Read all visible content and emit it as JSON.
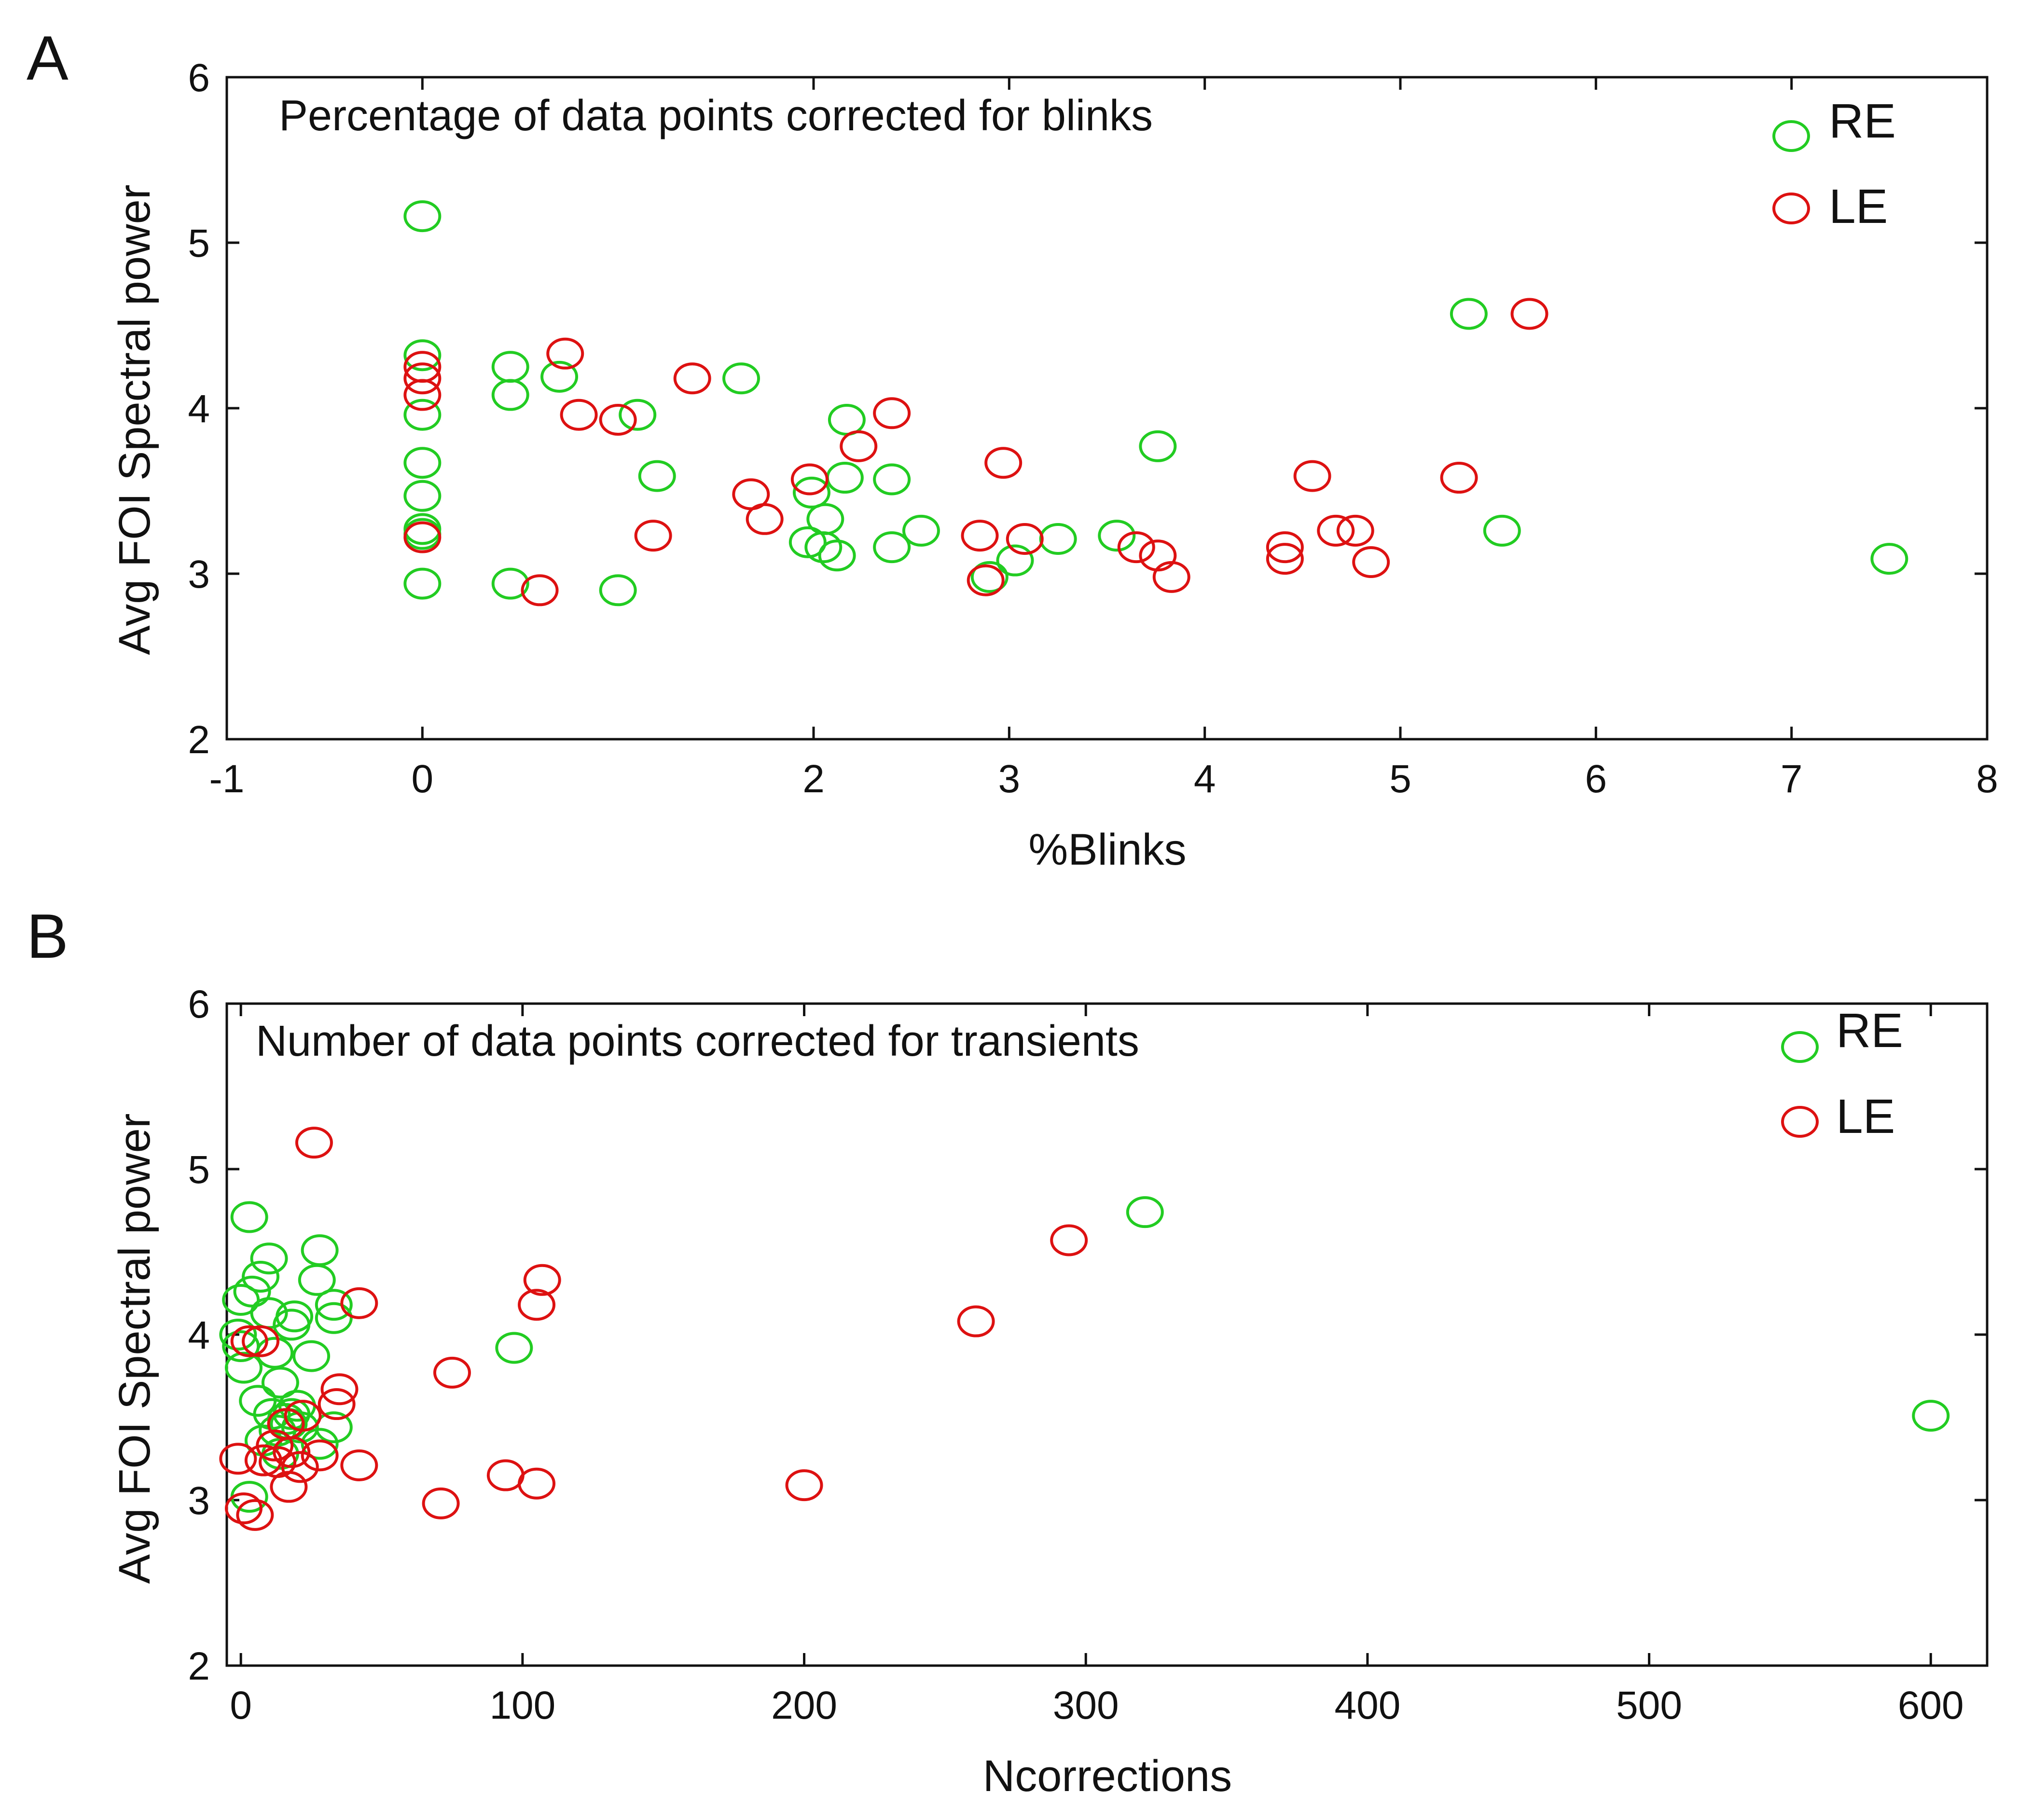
{
  "chart_data": [
    {
      "panel_label": "A",
      "type": "scatter",
      "title": "Percentage of data points corrected for blinks",
      "xlabel": "%Blinks",
      "ylabel": "Avg FOI Spectral power",
      "xlim": [
        -1,
        8
      ],
      "ylim": [
        2,
        6
      ],
      "xticks": [
        -1,
        0,
        2,
        3,
        4,
        5,
        6,
        7,
        8
      ],
      "xtick_labels": [
        "-1",
        "0",
        "2",
        "3",
        "4",
        "5",
        "6",
        "7",
        "8"
      ],
      "yticks": [
        2,
        3,
        4,
        5,
        6
      ],
      "ytick_labels": [
        "2",
        "3",
        "4",
        "5",
        "6"
      ],
      "grid": false,
      "legend_position": "top-right",
      "series": [
        {
          "name": "RE",
          "color": "#22cc22",
          "points": [
            [
              0,
              5.16
            ],
            [
              0,
              4.32
            ],
            [
              0,
              3.96
            ],
            [
              0,
              3.67
            ],
            [
              0,
              3.47
            ],
            [
              0,
              3.27
            ],
            [
              0,
              3.24
            ],
            [
              0,
              2.94
            ],
            [
              0.45,
              4.25
            ],
            [
              0.45,
              4.08
            ],
            [
              0.45,
              2.94
            ],
            [
              0.7,
              4.19
            ],
            [
              1.0,
              2.9
            ],
            [
              1.1,
              3.96
            ],
            [
              1.2,
              3.59
            ],
            [
              1.63,
              4.18
            ],
            [
              1.97,
              3.19
            ],
            [
              1.99,
              3.49
            ],
            [
              2.05,
              3.16
            ],
            [
              2.06,
              3.33
            ],
            [
              2.12,
              3.11
            ],
            [
              2.16,
              3.58
            ],
            [
              2.17,
              3.93
            ],
            [
              2.4,
              3.57
            ],
            [
              2.4,
              3.16
            ],
            [
              2.55,
              3.26
            ],
            [
              2.9,
              2.98
            ],
            [
              3.03,
              3.08
            ],
            [
              3.25,
              3.21
            ],
            [
              3.55,
              3.23
            ],
            [
              3.76,
              3.77
            ],
            [
              5.35,
              4.57
            ],
            [
              5.52,
              3.26
            ],
            [
              7.5,
              3.09
            ]
          ]
        },
        {
          "name": "LE",
          "color": "#dd1111",
          "points": [
            [
              0,
              4.25
            ],
            [
              0,
              4.18
            ],
            [
              0,
              4.08
            ],
            [
              0,
              3.22
            ],
            [
              0.6,
              2.9
            ],
            [
              0.73,
              4.33
            ],
            [
              0.8,
              3.96
            ],
            [
              1.0,
              3.93
            ],
            [
              1.18,
              3.23
            ],
            [
              1.38,
              4.18
            ],
            [
              1.68,
              3.48
            ],
            [
              1.75,
              3.33
            ],
            [
              1.98,
              3.57
            ],
            [
              2.23,
              3.77
            ],
            [
              2.4,
              3.97
            ],
            [
              2.85,
              3.23
            ],
            [
              2.88,
              2.96
            ],
            [
              2.97,
              3.67
            ],
            [
              3.08,
              3.21
            ],
            [
              3.65,
              3.16
            ],
            [
              3.76,
              3.11
            ],
            [
              3.83,
              2.98
            ],
            [
              4.41,
              3.16
            ],
            [
              4.41,
              3.09
            ],
            [
              4.55,
              3.59
            ],
            [
              4.67,
              3.26
            ],
            [
              4.77,
              3.26
            ],
            [
              4.85,
              3.07
            ],
            [
              5.3,
              3.58
            ],
            [
              5.66,
              4.57
            ]
          ]
        }
      ]
    },
    {
      "panel_label": "B",
      "type": "scatter",
      "title": "Number of data points corrected for transients",
      "xlabel": "Ncorrections",
      "ylabel": "Avg FOI Spectral power",
      "xlim": [
        -5,
        620
      ],
      "ylim": [
        2,
        6
      ],
      "xticks": [
        0,
        100,
        200,
        300,
        400,
        500,
        600
      ],
      "xtick_labels": [
        "0",
        "100",
        "200",
        "300",
        "400",
        "500",
        "600"
      ],
      "yticks": [
        2,
        3,
        4,
        5,
        6
      ],
      "ytick_labels": [
        "2",
        "3",
        "4",
        "5",
        "6"
      ],
      "grid": false,
      "legend_position": "top-right",
      "series": [
        {
          "name": "RE",
          "color": "#22cc22",
          "points": [
            [
              3,
              4.71
            ],
            [
              28,
              4.51
            ],
            [
              10,
              4.46
            ],
            [
              7,
              4.35
            ],
            [
              27,
              4.33
            ],
            [
              4,
              4.26
            ],
            [
              0,
              4.21
            ],
            [
              33,
              4.18
            ],
            [
              10,
              4.13
            ],
            [
              19,
              4.11
            ],
            [
              18,
              4.06
            ],
            [
              33,
              4.1
            ],
            [
              -1,
              4.0
            ],
            [
              0,
              3.93
            ],
            [
              12,
              3.89
            ],
            [
              25,
              3.87
            ],
            [
              1,
              3.8
            ],
            [
              14,
              3.71
            ],
            [
              6,
              3.6
            ],
            [
              20,
              3.57
            ],
            [
              11,
              3.52
            ],
            [
              18,
              3.52
            ],
            [
              16,
              3.49
            ],
            [
              17,
              3.46
            ],
            [
              21,
              3.44
            ],
            [
              33,
              3.44
            ],
            [
              13,
              3.42
            ],
            [
              8,
              3.36
            ],
            [
              28,
              3.34
            ],
            [
              14,
              3.28
            ],
            [
              3,
              3.02
            ],
            [
              97,
              3.92
            ],
            [
              321,
              4.74
            ],
            [
              600,
              3.51
            ]
          ]
        },
        {
          "name": "LE",
          "color": "#dd1111",
          "points": [
            [
              26,
              5.16
            ],
            [
              42,
              4.19
            ],
            [
              7,
              3.96
            ],
            [
              3,
              3.96
            ],
            [
              35,
              3.67
            ],
            [
              34,
              3.58
            ],
            [
              22,
              3.51
            ],
            [
              16,
              3.46
            ],
            [
              12,
              3.33
            ],
            [
              18,
              3.29
            ],
            [
              8,
              3.24
            ],
            [
              13,
              3.23
            ],
            [
              21,
              3.2
            ],
            [
              28,
              3.27
            ],
            [
              -1,
              3.25
            ],
            [
              17,
              3.08
            ],
            [
              42,
              3.21
            ],
            [
              1,
              2.95
            ],
            [
              5,
              2.91
            ],
            [
              71,
              2.98
            ],
            [
              75,
              3.77
            ],
            [
              94,
              3.15
            ],
            [
              105,
              3.1
            ],
            [
              105,
              4.18
            ],
            [
              107,
              4.33
            ],
            [
              200,
              3.09
            ],
            [
              261,
              4.08
            ],
            [
              294,
              4.57
            ]
          ]
        }
      ]
    }
  ]
}
